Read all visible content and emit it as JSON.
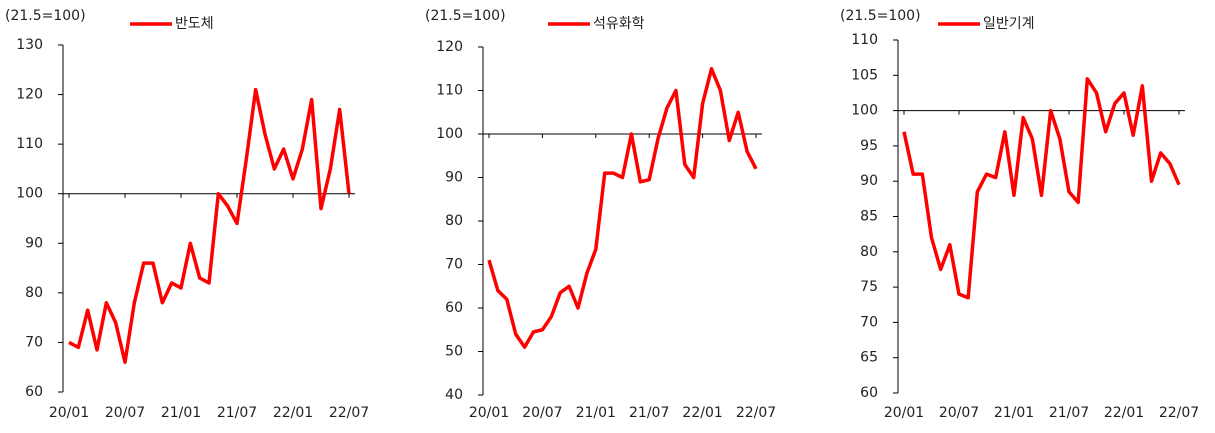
{
  "chart_data": [
    {
      "type": "line",
      "subtitle": "(21.5=100)",
      "categories": [
        "20/01",
        null,
        null,
        null,
        null,
        null,
        "20/07",
        null,
        null,
        null,
        null,
        null,
        "21/01",
        null,
        null,
        null,
        null,
        null,
        "21/07",
        null,
        null,
        null,
        null,
        null,
        "22/01",
        null,
        null,
        null,
        null,
        null,
        "22/07"
      ],
      "series": [
        {
          "name": "반도체",
          "color": "#ff0000",
          "values": [
            70,
            69,
            76.5,
            68.5,
            78,
            74,
            66,
            78,
            86,
            86,
            78,
            82,
            81,
            90,
            83,
            82,
            100,
            97.5,
            94,
            107,
            121,
            112,
            105,
            109,
            103,
            109,
            119,
            97,
            105,
            117,
            100
          ]
        }
      ],
      "ylim": [
        60,
        130
      ],
      "yticks": [
        60,
        70,
        80,
        90,
        100,
        110,
        120,
        130
      ],
      "baseline": 100
    },
    {
      "type": "line",
      "subtitle": "(21.5=100)",
      "categories": [
        "20/01",
        null,
        null,
        null,
        null,
        null,
        "20/07",
        null,
        null,
        null,
        null,
        null,
        "21/01",
        null,
        null,
        null,
        null,
        null,
        "21/07",
        null,
        null,
        null,
        null,
        null,
        "22/01",
        null,
        null,
        null,
        null,
        null,
        "22/07"
      ],
      "series": [
        {
          "name": "석유화학",
          "color": "#ff0000",
          "values": [
            71,
            64,
            62,
            54,
            51,
            54.5,
            55,
            58,
            63.5,
            65,
            60,
            68,
            73.5,
            91,
            91,
            90,
            100,
            89,
            89.5,
            99,
            106,
            110,
            93,
            90,
            107,
            115,
            110,
            98.5,
            105,
            96,
            92
          ]
        }
      ],
      "ylim": [
        40,
        120
      ],
      "yticks": [
        40,
        50,
        60,
        70,
        80,
        90,
        100,
        110,
        120
      ],
      "baseline": 100
    },
    {
      "type": "line",
      "subtitle": "(21.5=100)",
      "categories": [
        "20/01",
        null,
        null,
        null,
        null,
        null,
        "20/07",
        null,
        null,
        null,
        null,
        null,
        "21/01",
        null,
        null,
        null,
        null,
        null,
        "21/07",
        null,
        null,
        null,
        null,
        null,
        "22/01",
        null,
        null,
        null,
        null,
        null,
        "22/07"
      ],
      "series": [
        {
          "name": "일반기계",
          "color": "#ff0000",
          "values": [
            97,
            91,
            91,
            82,
            77.5,
            81,
            74,
            73.5,
            88.5,
            91,
            90.5,
            97,
            88,
            99,
            96,
            88,
            100,
            96,
            88.5,
            87,
            104.5,
            102.5,
            97,
            101,
            102.5,
            96.5,
            103.5,
            90,
            94,
            92.5,
            89.5
          ]
        }
      ],
      "ylim": [
        60,
        110
      ],
      "yticks": [
        60,
        65,
        70,
        75,
        80,
        85,
        90,
        95,
        100,
        105,
        110
      ],
      "baseline": 100
    }
  ]
}
